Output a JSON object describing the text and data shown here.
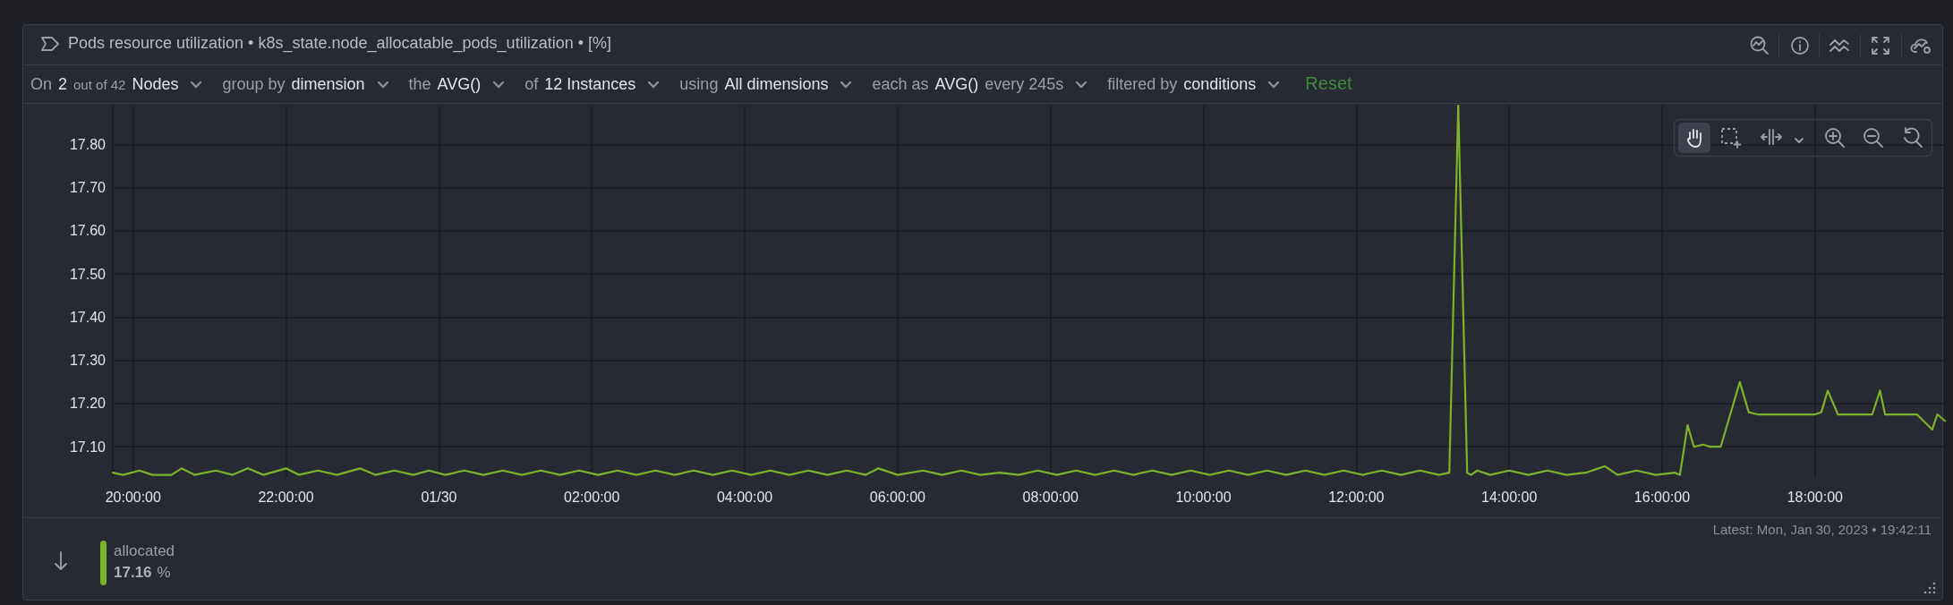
{
  "chart_data": {
    "type": "line",
    "title": "Pods resource utilization • k8s_state.node_allocatable_pods_utilization • [%]",
    "annotations": [
      "On",
      "2",
      "out of 42",
      "Nodes",
      "group by",
      "dimension",
      "the",
      "AVG()",
      "of",
      "12 Instances",
      "using",
      "All dimensions",
      "each as",
      "AVG()",
      "every 245s",
      "filtered by",
      "conditions",
      "Reset",
      "17.16",
      "%",
      "Latest:  Mon, Jan 30, 2023 • 19:42:11"
    ],
    "series": [
      {
        "name": "allocated",
        "color": "#7cb32a",
        "x": [
          "2023-01-29T19:44",
          "2023-01-29T19:52",
          "2023-01-29T20:05",
          "2023-01-29T20:15",
          "2023-01-29T20:30",
          "2023-01-29T20:38",
          "2023-01-29T20:48",
          "2023-01-29T21:05",
          "2023-01-29T21:18",
          "2023-01-29T21:30",
          "2023-01-29T21:42",
          "2023-01-29T22:00",
          "2023-01-29T22:10",
          "2023-01-29T22:25",
          "2023-01-29T22:40",
          "2023-01-29T22:58",
          "2023-01-29T23:10",
          "2023-01-29T23:25",
          "2023-01-29T23:40",
          "2023-01-29T23:52",
          "2023-01-30T00:05",
          "2023-01-30T00:20",
          "2023-01-30T00:35",
          "2023-01-30T00:50",
          "2023-01-30T01:05",
          "2023-01-30T01:20",
          "2023-01-30T01:35",
          "2023-01-30T01:50",
          "2023-01-30T02:05",
          "2023-01-30T02:20",
          "2023-01-30T02:35",
          "2023-01-30T02:50",
          "2023-01-30T03:05",
          "2023-01-30T03:20",
          "2023-01-30T03:35",
          "2023-01-30T03:50",
          "2023-01-30T04:05",
          "2023-01-30T04:20",
          "2023-01-30T04:35",
          "2023-01-30T04:50",
          "2023-01-30T05:05",
          "2023-01-30T05:20",
          "2023-01-30T05:35",
          "2023-01-30T05:45",
          "2023-01-30T06:00",
          "2023-01-30T06:20",
          "2023-01-30T06:35",
          "2023-01-30T06:50",
          "2023-01-30T07:05",
          "2023-01-30T07:20",
          "2023-01-30T07:35",
          "2023-01-30T07:50",
          "2023-01-30T08:05",
          "2023-01-30T08:20",
          "2023-01-30T08:35",
          "2023-01-30T08:50",
          "2023-01-30T09:05",
          "2023-01-30T09:20",
          "2023-01-30T09:35",
          "2023-01-30T09:50",
          "2023-01-30T10:05",
          "2023-01-30T10:20",
          "2023-01-30T10:35",
          "2023-01-30T10:50",
          "2023-01-30T11:05",
          "2023-01-30T11:20",
          "2023-01-30T11:35",
          "2023-01-30T11:50",
          "2023-01-30T12:05",
          "2023-01-30T12:20",
          "2023-01-30T12:35",
          "2023-01-30T12:50",
          "2023-01-30T13:05",
          "2023-01-30T13:13",
          "2023-01-30T13:20",
          "2023-01-30T13:27",
          "2023-01-30T13:30",
          "2023-01-30T13:35",
          "2023-01-30T13:45",
          "2023-01-30T14:00",
          "2023-01-30T14:15",
          "2023-01-30T14:30",
          "2023-01-30T14:45",
          "2023-01-30T15:00",
          "2023-01-30T15:15",
          "2023-01-30T15:25",
          "2023-01-30T15:40",
          "2023-01-30T15:55",
          "2023-01-30T16:10",
          "2023-01-30T16:14",
          "2023-01-30T16:20",
          "2023-01-30T16:25",
          "2023-01-30T16:32",
          "2023-01-30T16:38",
          "2023-01-30T16:46",
          "2023-01-30T16:55",
          "2023-01-30T17:01",
          "2023-01-30T17:08",
          "2023-01-30T17:15",
          "2023-01-30T17:30",
          "2023-01-30T17:45",
          "2023-01-30T18:00",
          "2023-01-30T18:05",
          "2023-01-30T18:10",
          "2023-01-30T18:18",
          "2023-01-30T18:35",
          "2023-01-30T18:45",
          "2023-01-30T18:51",
          "2023-01-30T18:55",
          "2023-01-30T19:20",
          "2023-01-30T19:32",
          "2023-01-30T19:36",
          "2023-01-30T19:42"
        ],
        "values": [
          17.04,
          17.035,
          17.045,
          17.035,
          17.035,
          17.05,
          17.035,
          17.045,
          17.035,
          17.05,
          17.035,
          17.05,
          17.035,
          17.045,
          17.035,
          17.05,
          17.035,
          17.045,
          17.035,
          17.045,
          17.035,
          17.045,
          17.035,
          17.045,
          17.035,
          17.045,
          17.035,
          17.045,
          17.035,
          17.045,
          17.035,
          17.045,
          17.035,
          17.045,
          17.035,
          17.045,
          17.035,
          17.045,
          17.035,
          17.045,
          17.035,
          17.045,
          17.035,
          17.05,
          17.035,
          17.045,
          17.035,
          17.045,
          17.035,
          17.04,
          17.035,
          17.045,
          17.035,
          17.045,
          17.035,
          17.045,
          17.035,
          17.045,
          17.035,
          17.045,
          17.035,
          17.045,
          17.035,
          17.045,
          17.035,
          17.045,
          17.035,
          17.045,
          17.035,
          17.045,
          17.035,
          17.045,
          17.035,
          17.04,
          17.89,
          17.04,
          17.035,
          17.045,
          17.035,
          17.045,
          17.035,
          17.045,
          17.035,
          17.04,
          17.055,
          17.035,
          17.045,
          17.035,
          17.04,
          17.035,
          17.15,
          17.1,
          17.105,
          17.1,
          17.1,
          17.19,
          17.25,
          17.18,
          17.175,
          17.175,
          17.175,
          17.175,
          17.18,
          17.23,
          17.175,
          17.175,
          17.175,
          17.23,
          17.175,
          17.175,
          17.14,
          17.175,
          17.16
        ]
      }
    ],
    "xlim": [
      "2023-01-29T19:44",
      "2023-01-30T19:42"
    ],
    "xticks": [
      {
        "value": "2023-01-29T20:00",
        "label": "20:00:00"
      },
      {
        "value": "2023-01-29T22:00",
        "label": "22:00:00"
      },
      {
        "value": "2023-01-30T00:00",
        "label": "01/30"
      },
      {
        "value": "2023-01-30T02:00",
        "label": "02:00:00"
      },
      {
        "value": "2023-01-30T04:00",
        "label": "04:00:00"
      },
      {
        "value": "2023-01-30T06:00",
        "label": "06:00:00"
      },
      {
        "value": "2023-01-30T08:00",
        "label": "08:00:00"
      },
      {
        "value": "2023-01-30T10:00",
        "label": "10:00:00"
      },
      {
        "value": "2023-01-30T12:00",
        "label": "12:00:00"
      },
      {
        "value": "2023-01-30T14:00",
        "label": "14:00:00"
      },
      {
        "value": "2023-01-30T16:00",
        "label": "16:00:00"
      },
      {
        "value": "2023-01-30T18:00",
        "label": "18:00:00"
      }
    ],
    "ylim": [
      17.03,
      17.89
    ],
    "yticks": [
      {
        "value": 17.1,
        "label": "17.10"
      },
      {
        "value": 17.2,
        "label": "17.20"
      },
      {
        "value": 17.3,
        "label": "17.30"
      },
      {
        "value": 17.4,
        "label": "17.40"
      },
      {
        "value": 17.5,
        "label": "17.50"
      },
      {
        "value": 17.6,
        "label": "17.60"
      },
      {
        "value": 17.7,
        "label": "17.70"
      },
      {
        "value": 17.8,
        "label": "17.80"
      }
    ],
    "grid": true,
    "legend": "bottom left",
    "marker": "none",
    "line_style": "solid"
  }
}
